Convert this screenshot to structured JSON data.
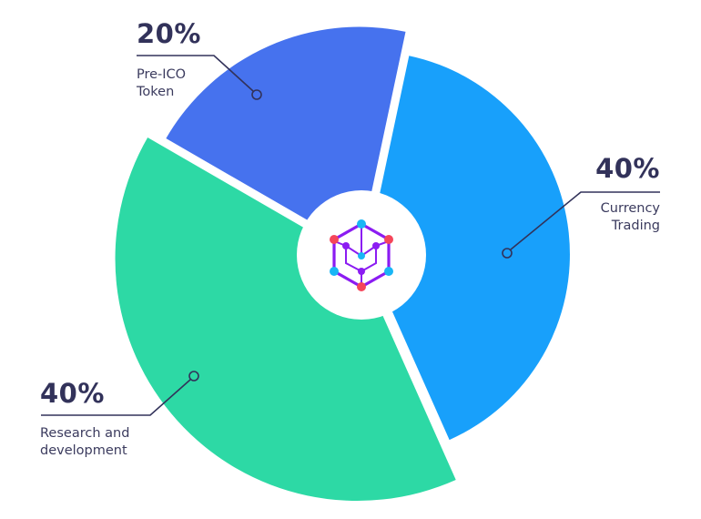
{
  "chart_data": {
    "type": "pie",
    "donut": true,
    "slices": [
      {
        "label": "Pre-ICO Token",
        "label_lines": [
          "Pre-ICO",
          "Token"
        ],
        "value": 20,
        "value_label": "20%",
        "color": "#4672EE"
      },
      {
        "label": "Currency Trading",
        "label_lines": [
          "Currency",
          "Trading"
        ],
        "value": 40,
        "value_label": "40%",
        "color": "#18A0FB"
      },
      {
        "label": "Research and development",
        "label_lines": [
          "Research and",
          "development"
        ],
        "value": 40,
        "value_label": "40%",
        "color": "#2DD9A5"
      }
    ],
    "center_icon": "hexagon-cube-logo-icon"
  },
  "text_color": "#32325a"
}
